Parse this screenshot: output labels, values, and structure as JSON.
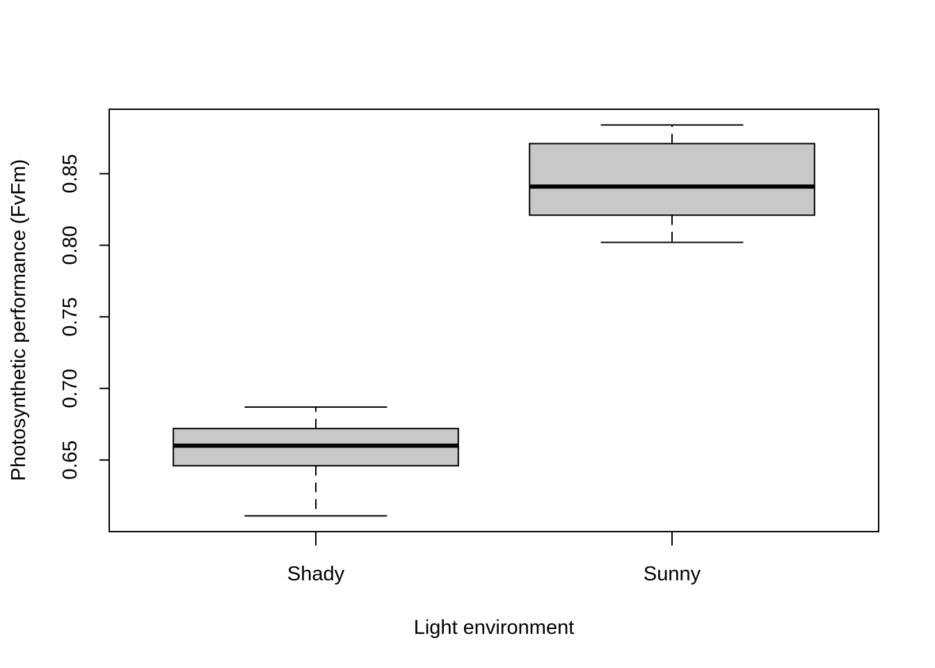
{
  "chart_data": {
    "type": "boxplot",
    "xlabel": "Light environment",
    "ylabel": "Photosynthetic performance (FvFm)",
    "categories": [
      "Shady",
      "Sunny"
    ],
    "boxes": [
      {
        "category": "Shady",
        "whisker_low": 0.611,
        "q1": 0.646,
        "median": 0.66,
        "q3": 0.672,
        "whisker_high": 0.687
      },
      {
        "category": "Sunny",
        "whisker_low": 0.802,
        "q1": 0.821,
        "median": 0.841,
        "q3": 0.871,
        "whisker_high": 0.884
      }
    ],
    "yticks": [
      "0.65",
      "0.70",
      "0.75",
      "0.80",
      "0.85"
    ],
    "ylim": [
      0.6,
      0.895
    ],
    "grid": false,
    "colors": {
      "box_fill": "#c8c8c8",
      "line": "#000000"
    }
  }
}
